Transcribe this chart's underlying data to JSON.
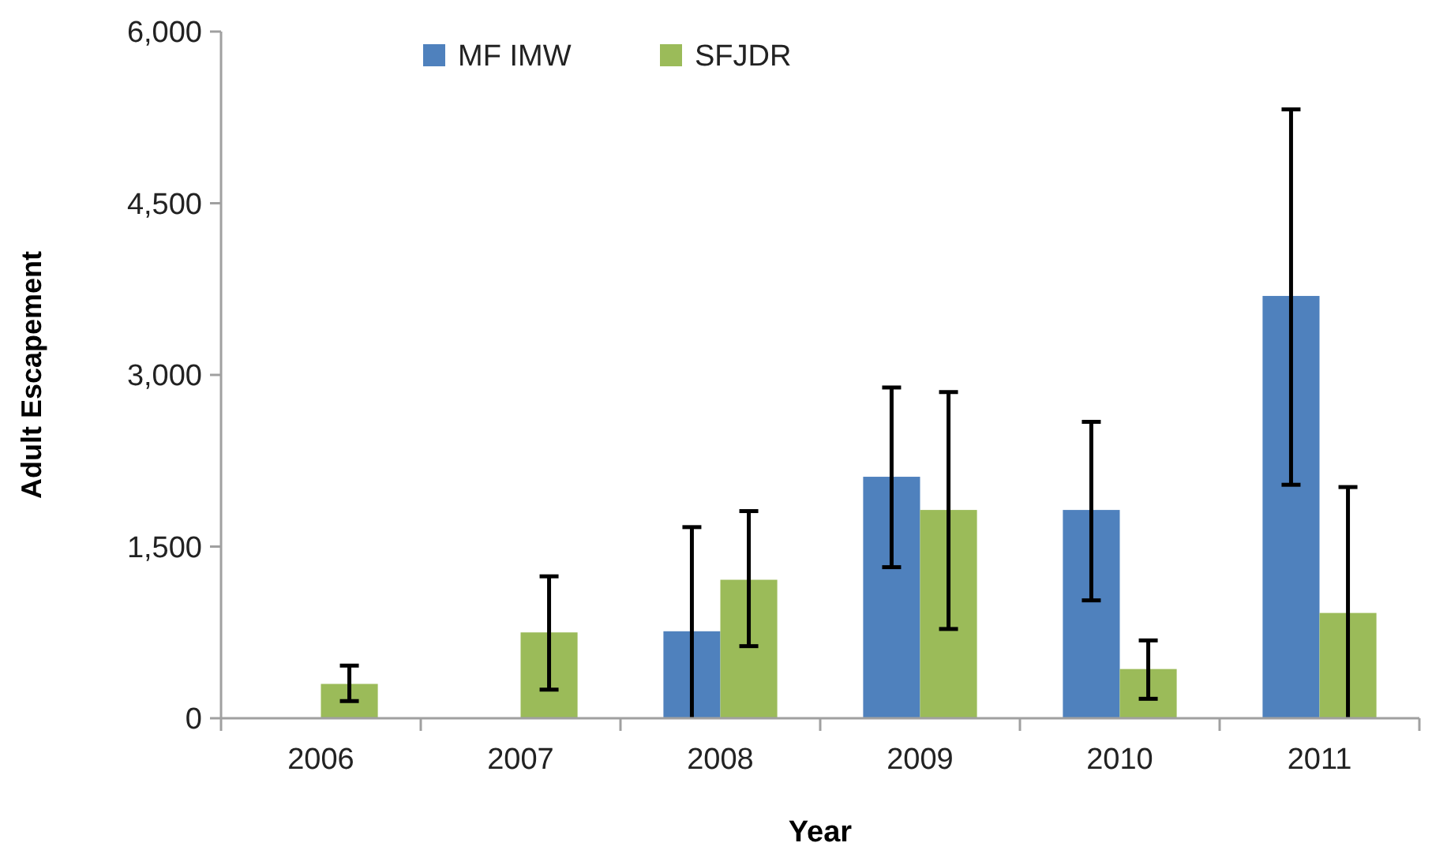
{
  "chart_data": {
    "type": "bar",
    "xlabel": "Year",
    "ylabel": "Adult Escapement",
    "categories": [
      "2006",
      "2007",
      "2008",
      "2009",
      "2010",
      "2011"
    ],
    "series": [
      {
        "name": "MF IMW",
        "color": "#4f81bd",
        "values": [
          null,
          null,
          760,
          2110,
          1820,
          3690
        ],
        "errors": [
          null,
          null,
          [
            0,
            1670
          ],
          [
            1320,
            2890
          ],
          [
            1030,
            2590
          ],
          [
            2040,
            5320
          ]
        ]
      },
      {
        "name": "SFJDR",
        "color": "#9bbb59",
        "values": [
          300,
          750,
          1210,
          1820,
          430,
          920
        ],
        "errors": [
          [
            150,
            460
          ],
          [
            250,
            1240
          ],
          [
            630,
            1810
          ],
          [
            780,
            2850
          ],
          [
            170,
            680
          ],
          [
            0,
            2020
          ]
        ]
      }
    ],
    "ylim": [
      0,
      6000
    ],
    "yticks": [
      {
        "value": 0,
        "label": "0"
      },
      {
        "value": 1500,
        "label": "1,500"
      },
      {
        "value": 3000,
        "label": "3,000"
      },
      {
        "value": 4500,
        "label": "4,500"
      },
      {
        "value": 6000,
        "label": "6,000"
      }
    ],
    "grid": false,
    "legend": "top left"
  }
}
